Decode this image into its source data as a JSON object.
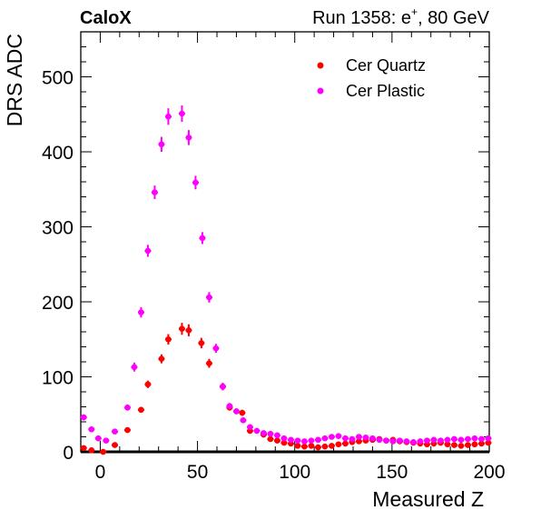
{
  "header": {
    "left_label": "CaloX",
    "run_text": "Run 1358: e",
    "run_superscript": "+",
    "run_suffix": ", 80 GeV"
  },
  "chart_data": {
    "type": "scatter",
    "xlabel": "Measured Z",
    "ylabel": "DRS ADC",
    "xlim": [
      -10,
      200
    ],
    "ylim": [
      0,
      560
    ],
    "x_ticks": [
      0,
      50,
      100,
      150,
      200
    ],
    "y_ticks": [
      0,
      100,
      200,
      300,
      400,
      500
    ],
    "grid": false,
    "legend_position": "top-right",
    "series": [
      {
        "name": "Cer Quartz",
        "color": "#ff0000",
        "x": [
          -8.5,
          -4.5,
          1.5,
          7.5,
          14,
          21,
          24.5,
          31.5,
          35,
          42,
          45.5,
          52,
          56,
          63,
          66.5,
          73,
          77,
          84,
          87.5,
          91,
          94.5,
          98,
          101.5,
          105,
          108.5,
          112,
          115.5,
          119,
          122.5,
          126,
          129.5,
          133,
          136.5,
          140,
          143.5,
          147,
          150.5,
          154,
          157.5,
          161,
          164.5,
          168,
          171.5,
          175,
          178.5,
          182,
          185.5,
          189,
          192.5,
          196,
          199.5
        ],
        "y": [
          5,
          2,
          0,
          9,
          29,
          56,
          90,
          124,
          150,
          164,
          162,
          145,
          118,
          87,
          59,
          52,
          28,
          23,
          17,
          15,
          12,
          11,
          8,
          7,
          8,
          6,
          7,
          8,
          10,
          11,
          13,
          14,
          15,
          16,
          17,
          15,
          16,
          14,
          13,
          12,
          11,
          10,
          11,
          12,
          10,
          9,
          8,
          9,
          10,
          11,
          12
        ],
        "y_err": [
          3,
          3,
          3,
          3,
          3,
          4,
          5,
          6,
          7,
          8,
          8,
          7,
          6,
          5,
          4,
          4,
          3,
          3,
          3,
          3,
          3,
          3,
          3,
          3,
          3,
          3,
          3,
          3,
          3,
          3,
          3,
          3,
          3,
          3,
          3,
          3,
          3,
          3,
          3,
          3,
          3,
          3,
          3,
          3,
          3,
          3,
          3,
          3,
          3,
          3,
          3
        ]
      },
      {
        "name": "Cer Plastic",
        "color": "#ff00ff",
        "x": [
          -8.5,
          -4.5,
          -1,
          3,
          7.5,
          14,
          17.5,
          21,
          24.5,
          28,
          31.5,
          35,
          42,
          45.5,
          49,
          52.5,
          56,
          59.5,
          63,
          66.5,
          70,
          73.5,
          77,
          80.5,
          84,
          87.5,
          91,
          94.5,
          98,
          101.5,
          105,
          108.5,
          112,
          115.5,
          119,
          122.5,
          126,
          129.5,
          133,
          136.5,
          140,
          143.5,
          147,
          150.5,
          154,
          157.5,
          161,
          164.5,
          168,
          171.5,
          175,
          178.5,
          182,
          185.5,
          189,
          192.5,
          196,
          199.5
        ],
        "y": [
          46,
          30,
          18,
          15,
          27,
          59,
          113,
          186,
          268,
          346,
          410,
          447,
          451,
          419,
          359,
          285,
          206,
          138,
          87,
          61,
          54,
          42,
          33,
          28,
          25,
          24,
          22,
          18,
          16,
          15,
          14,
          15,
          16,
          18,
          20,
          21,
          18,
          17,
          20,
          19,
          18,
          16,
          15,
          14,
          15,
          14,
          13,
          14,
          15,
          16,
          15,
          16,
          17,
          16,
          17,
          18,
          17,
          18
        ],
        "y_err": [
          4,
          3,
          3,
          3,
          3,
          4,
          6,
          7,
          8,
          9,
          10,
          11,
          11,
          10,
          9,
          8,
          7,
          6,
          5,
          4,
          4,
          3,
          3,
          3,
          3,
          3,
          3,
          3,
          3,
          3,
          3,
          3,
          3,
          3,
          3,
          3,
          3,
          3,
          3,
          3,
          3,
          3,
          3,
          3,
          3,
          3,
          3,
          3,
          3,
          3,
          3,
          3,
          3,
          3,
          3,
          3,
          3,
          3
        ]
      }
    ]
  }
}
